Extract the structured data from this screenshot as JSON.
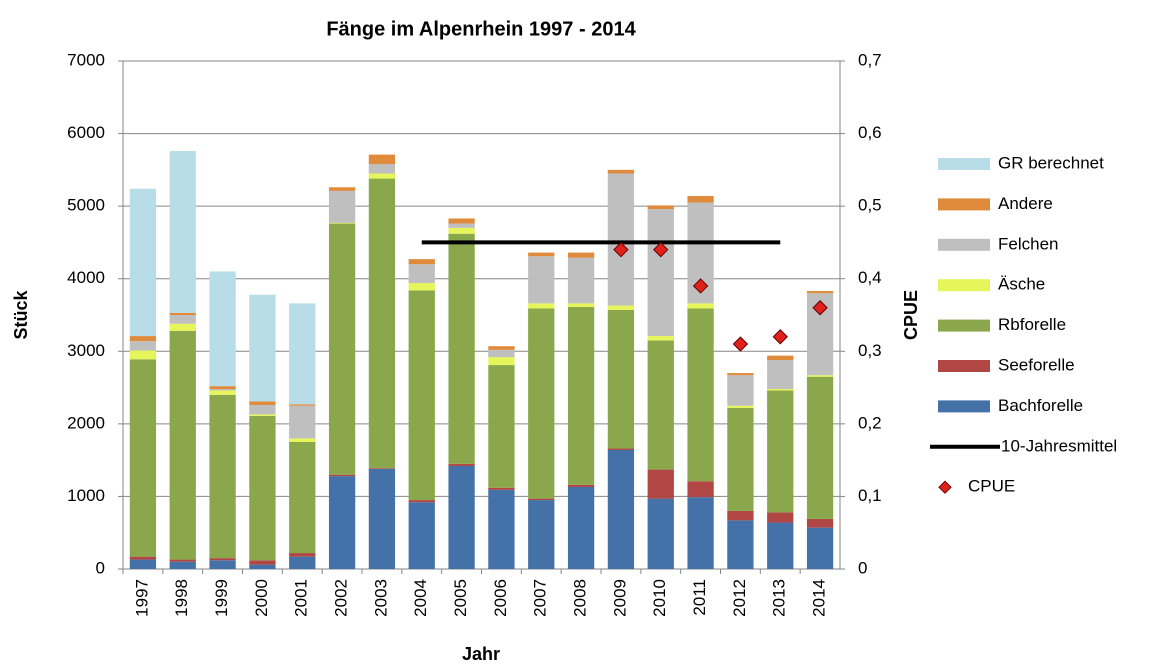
{
  "chart_data": {
    "type": "bar",
    "stacked": true,
    "title": "Fänge im Alpenrhein 1997 - 2014",
    "x_label": "Jahr",
    "y_label": "Stück",
    "y2_label": "CPUE",
    "categories": [
      "1997",
      "1998",
      "1999",
      "2000",
      "2001",
      "2002",
      "2003",
      "2004",
      "2005",
      "2006",
      "2007",
      "2008",
      "2009",
      "2010",
      "2011",
      "2012",
      "2013",
      "2014"
    ],
    "ylim": [
      0,
      7000
    ],
    "yticks": [
      0,
      1000,
      2000,
      3000,
      4000,
      5000,
      6000,
      7000
    ],
    "y2lim": [
      0,
      0.7
    ],
    "y2ticks": [
      0,
      {
        "value": 0.1,
        "label": "0,1"
      },
      {
        "value": 0.2,
        "label": "0,2"
      },
      {
        "value": 0.3,
        "label": "0,3"
      },
      {
        "value": 0.4,
        "label": "0,4"
      },
      {
        "value": 0.5,
        "label": "0,5"
      },
      {
        "value": 0.6,
        "label": "0,6"
      },
      {
        "value": 0.7,
        "label": "0,7"
      }
    ],
    "grid": true,
    "legend": "right",
    "series": [
      {
        "name": "Bachforelle",
        "color": "#4472a8",
        "values": [
          130,
          100,
          120,
          60,
          170,
          1280,
          1380,
          920,
          1420,
          1090,
          950,
          1130,
          1640,
          970,
          990,
          670,
          640,
          570
        ]
      },
      {
        "name": "Seeforelle",
        "color": "#b04745",
        "values": [
          40,
          30,
          30,
          60,
          50,
          20,
          10,
          30,
          30,
          30,
          20,
          30,
          20,
          400,
          220,
          130,
          140,
          120
        ]
      },
      {
        "name": "Rbforelle",
        "color": "#8aa84b",
        "values": [
          2720,
          3150,
          2250,
          1990,
          1530,
          3460,
          3990,
          2890,
          3170,
          1690,
          2620,
          2450,
          1910,
          1780,
          2380,
          1420,
          1680,
          1960
        ]
      },
      {
        "name": "Äsche",
        "color": "#e6f55a",
        "values": [
          120,
          100,
          60,
          20,
          50,
          10,
          70,
          100,
          80,
          110,
          70,
          50,
          60,
          60,
          70,
          30,
          20,
          20
        ]
      },
      {
        "name": "Felchen",
        "color": "#bfbfbf",
        "values": [
          130,
          120,
          20,
          130,
          450,
          440,
          130,
          260,
          60,
          100,
          650,
          630,
          1820,
          1750,
          1390,
          420,
          400,
          1130
        ]
      },
      {
        "name": "Andere",
        "color": "#e08b3c",
        "values": [
          70,
          30,
          40,
          50,
          20,
          50,
          130,
          70,
          70,
          50,
          50,
          70,
          50,
          50,
          90,
          30,
          60,
          30
        ]
      },
      {
        "name": "GR berechnet",
        "color": "#b7dde8",
        "values": [
          2030,
          2230,
          1580,
          1470,
          1390,
          0,
          0,
          0,
          0,
          0,
          0,
          0,
          0,
          0,
          0,
          0,
          0,
          0
        ]
      },
      {
        "name": "10-Jahresmittel",
        "type": "line",
        "axis": "y2",
        "color": "#000000",
        "values": [
          null,
          null,
          null,
          null,
          null,
          null,
          null,
          0.45,
          0.45,
          0.45,
          0.45,
          0.45,
          0.45,
          0.45,
          0.45,
          0.45,
          0.45,
          null
        ]
      },
      {
        "name": "CPUE",
        "type": "scatter",
        "axis": "y2",
        "color": "#e0201b",
        "values": [
          null,
          null,
          null,
          null,
          null,
          null,
          null,
          null,
          null,
          null,
          null,
          null,
          0.44,
          0.44,
          0.39,
          0.31,
          0.32,
          0.36
        ]
      }
    ]
  }
}
